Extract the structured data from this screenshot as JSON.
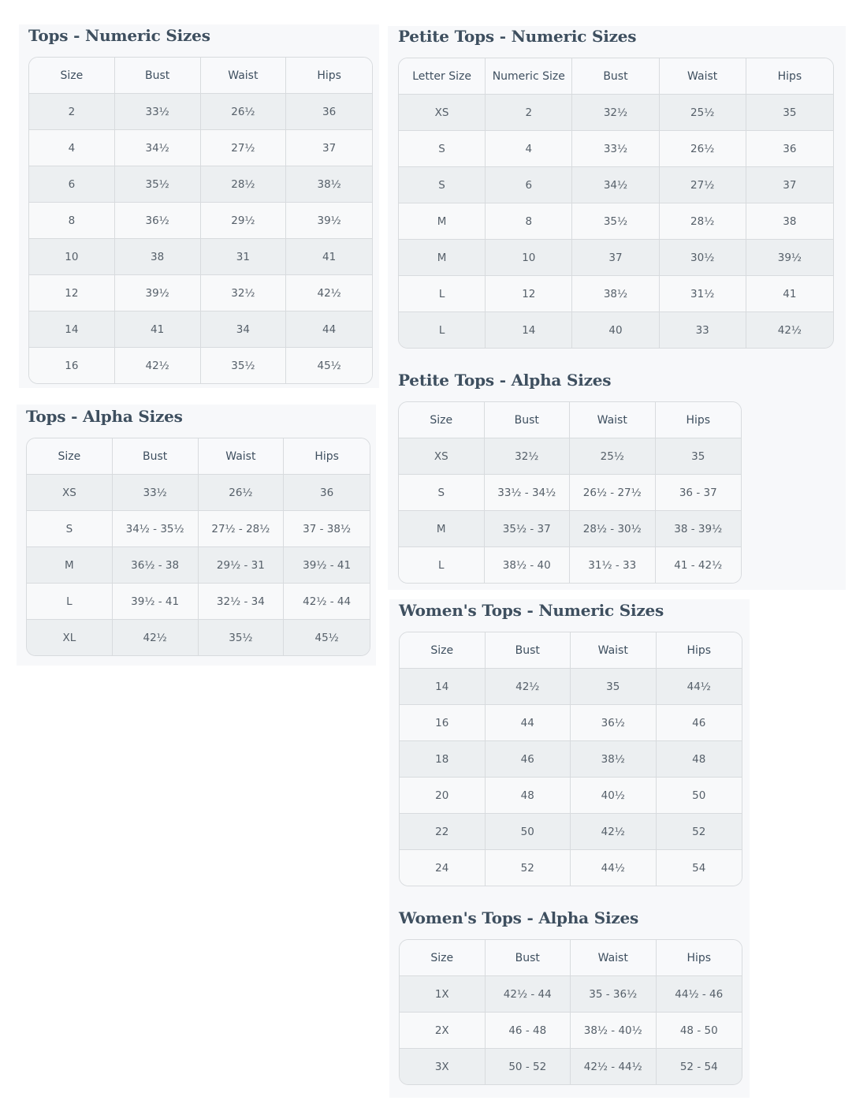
{
  "tables": [
    {
      "title": "Tops - Numeric Sizes",
      "headers": [
        "Size",
        "Bust",
        "Waist",
        "Hips"
      ],
      "rows": [
        [
          "2",
          "33½",
          "26½",
          "36"
        ],
        [
          "4",
          "34½",
          "27½",
          "37"
        ],
        [
          "6",
          "35½",
          "28½",
          "38½"
        ],
        [
          "8",
          "36½",
          "29½",
          "39½"
        ],
        [
          "10",
          "38",
          "31",
          "41"
        ],
        [
          "12",
          "39½",
          "32½",
          "42½"
        ],
        [
          "14",
          "41",
          "34",
          "44"
        ],
        [
          "16",
          "42½",
          "35½",
          "45½"
        ]
      ]
    },
    {
      "title": "Tops - Alpha Sizes",
      "headers": [
        "Size",
        "Bust",
        "Waist",
        "Hips"
      ],
      "rows": [
        [
          "XS",
          "33½",
          "26½",
          "36"
        ],
        [
          "S",
          "34½ - 35½",
          "27½ - 28½",
          "37 - 38½"
        ],
        [
          "M",
          "36½ - 38",
          "29½ - 31",
          "39½ - 41"
        ],
        [
          "L",
          "39½ - 41",
          "32½ - 34",
          "42½ - 44"
        ],
        [
          "XL",
          "42½",
          "35½",
          "45½"
        ]
      ]
    },
    {
      "title": "Petite Tops - Numeric Sizes",
      "headers": [
        "Letter Size",
        "Numeric Size",
        "Bust",
        "Waist",
        "Hips"
      ],
      "rows": [
        [
          "XS",
          "2",
          "32½",
          "25½",
          "35"
        ],
        [
          "S",
          "4",
          "33½",
          "26½",
          "36"
        ],
        [
          "S",
          "6",
          "34½",
          "27½",
          "37"
        ],
        [
          "M",
          "8",
          "35½",
          "28½",
          "38"
        ],
        [
          "M",
          "10",
          "37",
          "30½",
          "39½"
        ],
        [
          "L",
          "12",
          "38½",
          "31½",
          "41"
        ],
        [
          "L",
          "14",
          "40",
          "33",
          "42½"
        ]
      ]
    },
    {
      "title": "Petite Tops - Alpha Sizes",
      "headers": [
        "Size",
        "Bust",
        "Waist",
        "Hips"
      ],
      "rows": [
        [
          "XS",
          "32½",
          "25½",
          "35"
        ],
        [
          "S",
          "33½ - 34½",
          "26½ - 27½",
          "36 - 37"
        ],
        [
          "M",
          "35½ - 37",
          "28½ - 30½",
          "38 - 39½"
        ],
        [
          "L",
          "38½ - 40",
          "31½ - 33",
          "41 - 42½"
        ]
      ]
    },
    {
      "title": "Women's Tops - Numeric Sizes",
      "headers": [
        "Size",
        "Bust",
        "Waist",
        "Hips"
      ],
      "rows": [
        [
          "14",
          "42½",
          "35",
          "44½"
        ],
        [
          "16",
          "44",
          "36½",
          "46"
        ],
        [
          "18",
          "46",
          "38½",
          "48"
        ],
        [
          "20",
          "48",
          "40½",
          "50"
        ],
        [
          "22",
          "50",
          "42½",
          "52"
        ],
        [
          "24",
          "52",
          "44½",
          "54"
        ]
      ]
    },
    {
      "title": "Women's Tops - Alpha Sizes",
      "headers": [
        "Size",
        "Bust",
        "Waist",
        "Hips"
      ],
      "rows": [
        [
          "1X",
          "42½ - 44",
          "35 - 36½",
          "44½ - 46"
        ],
        [
          "2X",
          "46 - 48",
          "38½ - 40½",
          "48 - 50"
        ],
        [
          "3X",
          "50 - 52",
          "42½ - 44½",
          "52 - 54"
        ]
      ]
    }
  ]
}
